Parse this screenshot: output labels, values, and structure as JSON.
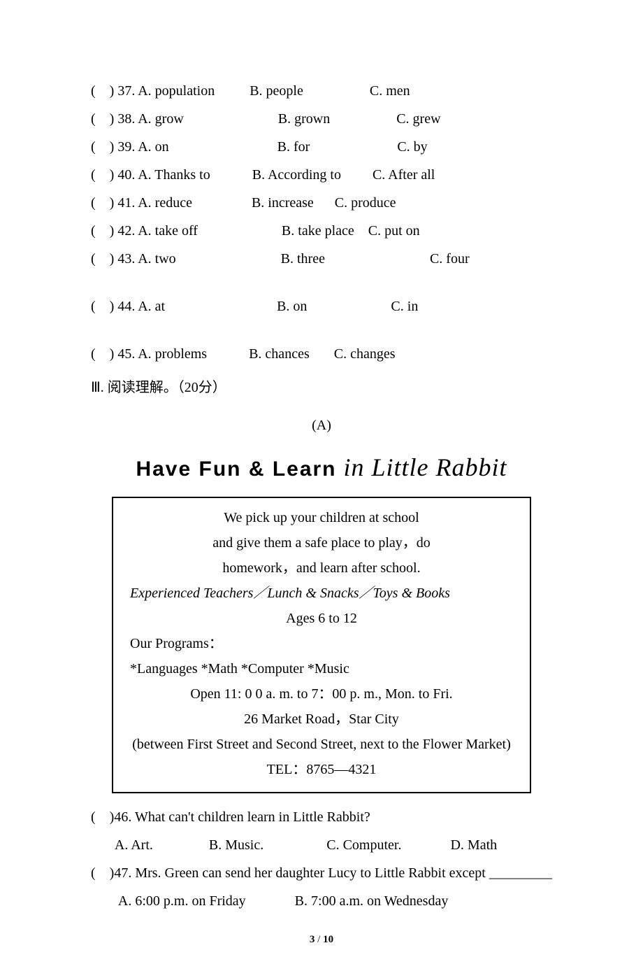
{
  "questions": [
    {
      "line": "(    ) 37. A. population          B. people                   C. men"
    },
    {
      "line": "(    ) 38. A. grow                           B. grown                   C. grew"
    },
    {
      "line": "(    ) 39. A. on                               B. for                         C. by"
    },
    {
      "line": "(    ) 40. A. Thanks to            B. According to         C. After all"
    },
    {
      "line": "(    ) 41. A. reduce                 B. increase      C. produce"
    },
    {
      "line": "(    ) 42. A. take off                        B. take place    C. put on"
    },
    {
      "line": "(    ) 43. A. two                              B. three                              C. four"
    }
  ],
  "spaced1": {
    "line": "(    ) 44. A. at                                B. on                        C. in"
  },
  "spaced2": {
    "line": "(    ) 45. A. problems            B. chances       C. changes"
  },
  "section3": "Ⅲ. 阅读理解。（20分）",
  "passageA": "(A)",
  "titleParts": {
    "a": "Have Fun & Learn",
    "b": " in ",
    "c": "Little Rabbit"
  },
  "ad": {
    "l1": "We pick up your children at school",
    "l2": "and give them a safe place to play，do",
    "l3": "homework，and learn after school.",
    "l4": "Experienced Teachers／Lunch & Snacks／Toys & Books",
    "l5": "Ages 6 to 12",
    "l6": "Our Programs：",
    "l7": "*Languages  *Math  *Computer  *Music",
    "l8": "Open 11: 0 0 a. m. to 7：00 p. m., Mon. to Fri.",
    "l9": "26 Market Road，Star City",
    "l10": "(between First Street and Second Street, next to the Flower Market)",
    "l11": "TEL：8765—4321"
  },
  "q46": {
    "stem": "(    )46. What can't children learn in Little Rabbit?",
    "opts": "       A. Art.                B. Music.                  C. Computer.              D. Math"
  },
  "q47": {
    "stem": "(    )47. Mrs. Green can send her daughter Lucy to Little Rabbit except _________",
    "opts": "        A. 6:00 p.m. on Friday              B. 7:00 a.m. on Wednesday"
  },
  "footer": {
    "cur": "3",
    "sep": " / ",
    "total": "10"
  }
}
